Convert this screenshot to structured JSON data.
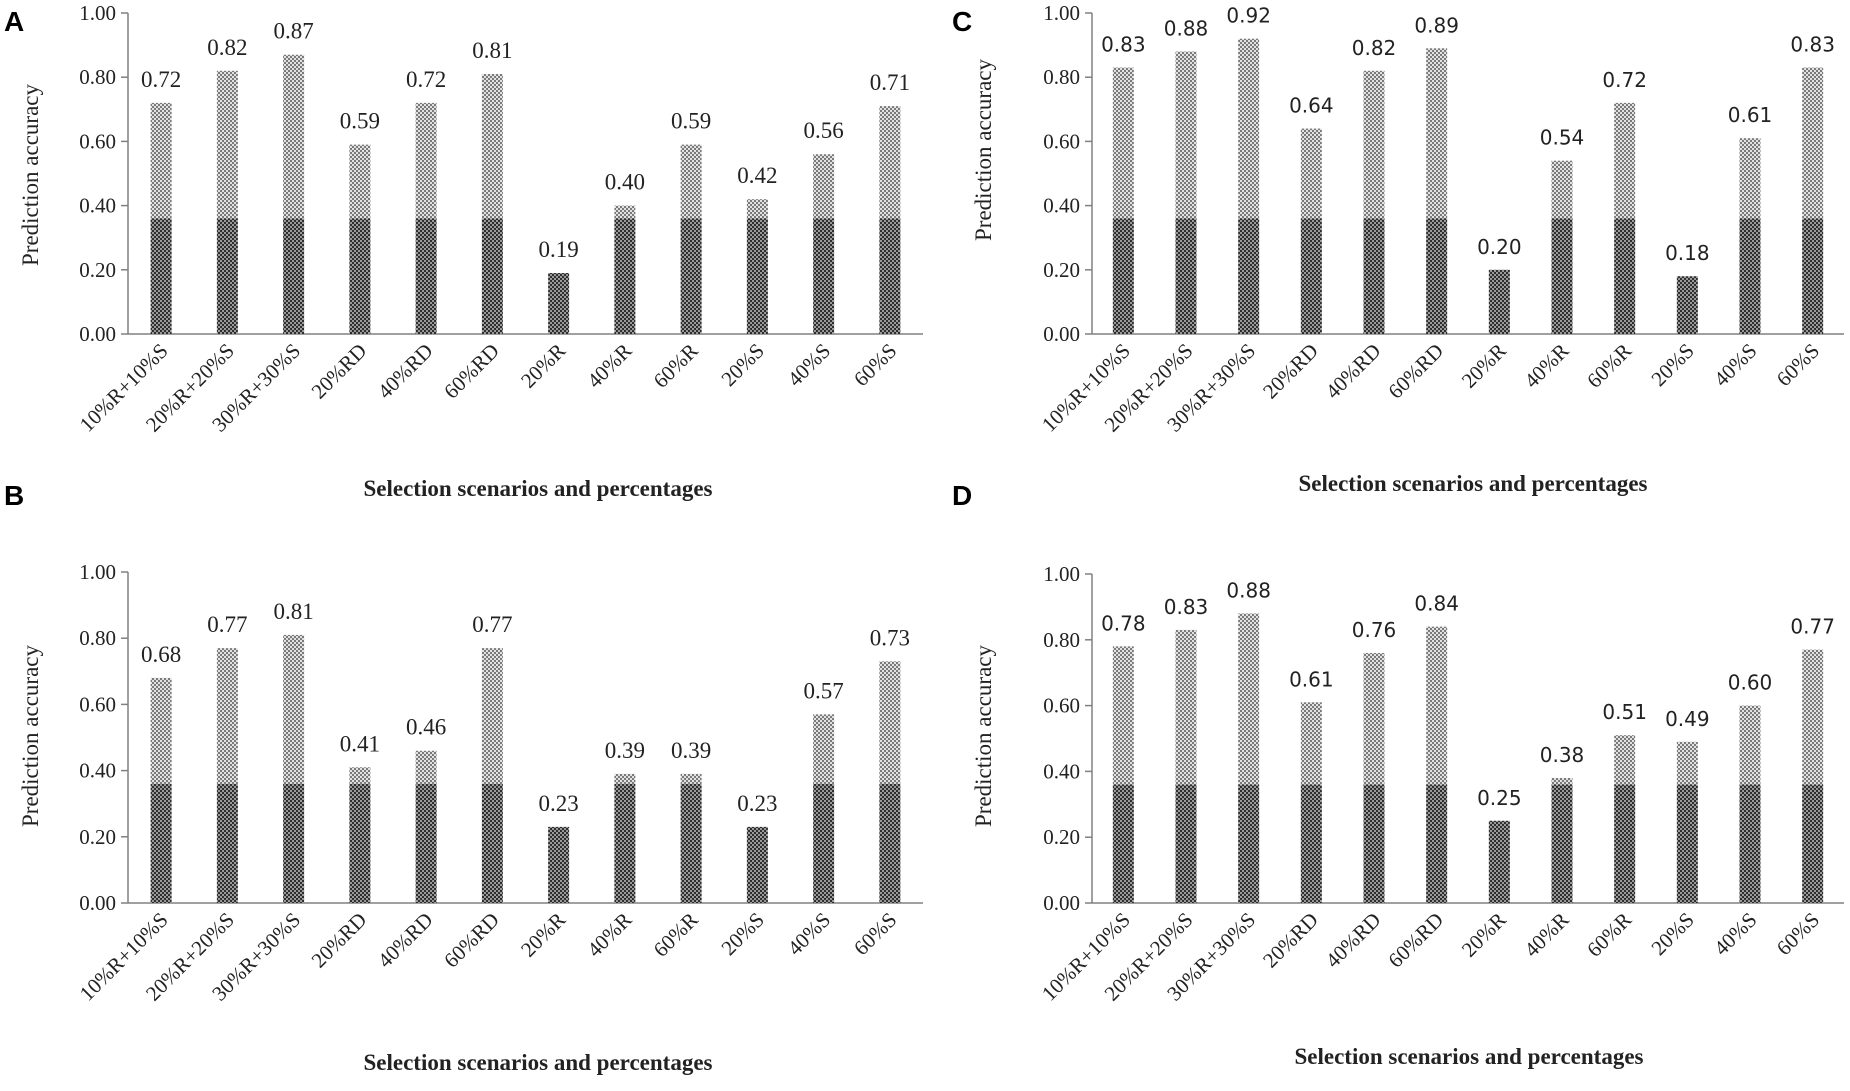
{
  "colors": {
    "bar_dark": "#4d4d4d",
    "bar_light": "#bdbdbd",
    "axis": "#808080",
    "text": "#222222"
  },
  "chart_data": [
    {
      "panel": "A",
      "type": "bar",
      "title": "",
      "xlabel": "Selection scenarios and percentages",
      "ylabel": "Prediction accuracy",
      "ylim": [
        0,
        1
      ],
      "yticks": [
        "0.00",
        "0.20",
        "0.40",
        "0.60",
        "0.80",
        "1.00"
      ],
      "categories": [
        "10%R+10%S",
        "20%R+20%S",
        "30%R+30%S",
        "20%RD",
        "40%RD",
        "60%RD",
        "20%R",
        "40%R",
        "60%R",
        "20%S",
        "40%S",
        "60%S"
      ],
      "values": [
        0.72,
        0.82,
        0.87,
        0.59,
        0.72,
        0.81,
        0.19,
        0.4,
        0.59,
        0.42,
        0.56,
        0.71
      ],
      "labels": [
        "0.72",
        "0.82",
        "0.87",
        "0.59",
        "0.72",
        "0.81",
        "0.19",
        "0.40",
        "0.59",
        "0.42",
        "0.56",
        "0.71"
      ]
    },
    {
      "panel": "B",
      "type": "bar",
      "title": "",
      "xlabel": "Selection scenarios and percentages",
      "ylabel": "Prediction accuracy",
      "ylim": [
        0,
        1
      ],
      "yticks": [
        "0.00",
        "0.20",
        "0.40",
        "0.60",
        "0.80",
        "1.00"
      ],
      "categories": [
        "10%R+10%S",
        "20%R+20%S",
        "30%R+30%S",
        "20%RD",
        "40%RD",
        "60%RD",
        "20%R",
        "40%R",
        "60%R",
        "20%S",
        "40%S",
        "60%S"
      ],
      "values": [
        0.68,
        0.77,
        0.81,
        0.41,
        0.46,
        0.77,
        0.23,
        0.39,
        0.39,
        0.23,
        0.57,
        0.73
      ],
      "labels": [
        "0.68",
        "0.77",
        "0.81",
        "0.41",
        "0.46",
        "0.77",
        "0.23",
        "0.39",
        "0.39",
        "0.23",
        "0.57",
        "0.73"
      ]
    },
    {
      "panel": "C",
      "type": "bar",
      "title": "",
      "xlabel": "Selection scenarios and percentages",
      "ylabel": "Prediction accuracy",
      "ylim": [
        0,
        1
      ],
      "yticks": [
        "0.00",
        "0.20",
        "0.40",
        "0.60",
        "0.80",
        "1.00"
      ],
      "categories": [
        "10%R+10%S",
        "20%R+20%S",
        "30%R+30%S",
        "20%RD",
        "40%RD",
        "60%RD",
        "20%R",
        "40%R",
        "60%R",
        "20%S",
        "40%S",
        "60%S"
      ],
      "values": [
        0.83,
        0.88,
        0.92,
        0.64,
        0.82,
        0.89,
        0.2,
        0.54,
        0.72,
        0.18,
        0.61,
        0.83
      ],
      "labels": [
        "0.83",
        "0.88",
        "0.92",
        "0.64",
        "0.82",
        "0.89",
        "0.20",
        "0.54",
        "0.72",
        "0.18",
        "0.61",
        "0.83"
      ]
    },
    {
      "panel": "D",
      "type": "bar",
      "title": "",
      "xlabel": "Selection scenarios and percentages",
      "ylabel": "Prediction accuracy",
      "ylim": [
        0,
        1
      ],
      "yticks": [
        "0.00",
        "0.20",
        "0.40",
        "0.60",
        "0.80",
        "1.00"
      ],
      "categories": [
        "10%R+10%S",
        "20%R+20%S",
        "30%R+30%S",
        "20%RD",
        "40%RD",
        "60%RD",
        "20%R",
        "40%R",
        "60%R",
        "20%S",
        "40%S",
        "60%S"
      ],
      "values": [
        0.78,
        0.83,
        0.88,
        0.61,
        0.76,
        0.84,
        0.25,
        0.38,
        0.51,
        0.49,
        0.6,
        0.77
      ],
      "labels": [
        "0.78",
        "0.83",
        "0.88",
        "0.61",
        "0.76",
        "0.84",
        "0.25",
        "0.38",
        "0.51",
        "0.49",
        "0.60",
        "0.77"
      ]
    }
  ]
}
